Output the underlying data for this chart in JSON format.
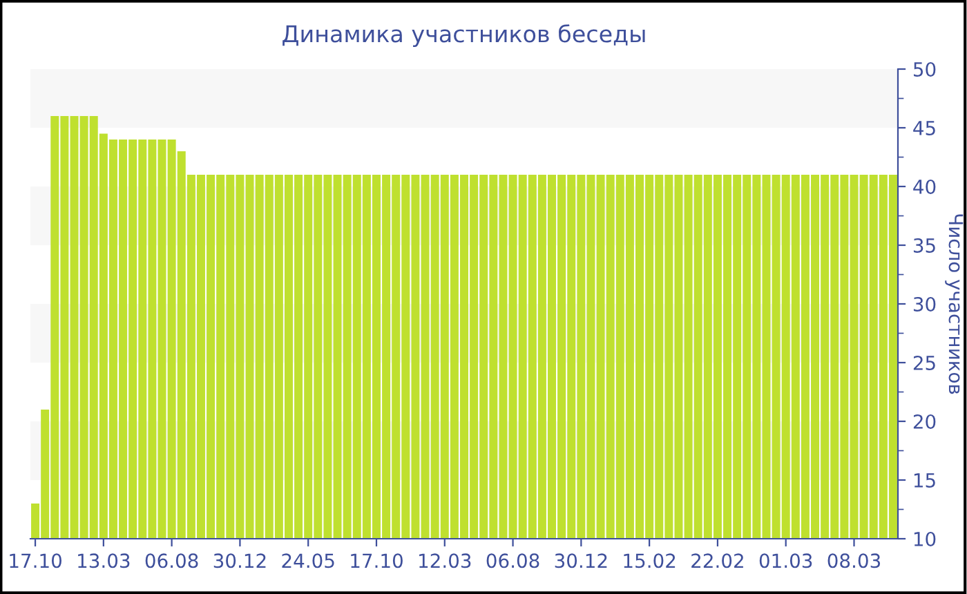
{
  "chart_data": {
    "type": "bar",
    "title": "Динамика участников беседы",
    "ylabel": "Число участников",
    "categories": [
      "17.10",
      null,
      null,
      null,
      null,
      null,
      null,
      "13.03",
      null,
      null,
      null,
      null,
      null,
      null,
      "06.08",
      null,
      null,
      null,
      null,
      null,
      null,
      "30.12",
      null,
      null,
      null,
      null,
      null,
      null,
      "24.05",
      null,
      null,
      null,
      null,
      null,
      null,
      "17.10",
      null,
      null,
      null,
      null,
      null,
      null,
      "12.03",
      null,
      null,
      null,
      null,
      null,
      null,
      "06.08",
      null,
      null,
      null,
      null,
      null,
      null,
      "30.12",
      null,
      null,
      null,
      null,
      null,
      null,
      "15.02",
      null,
      null,
      null,
      null,
      null,
      null,
      "22.02",
      null,
      null,
      null,
      null,
      null,
      null,
      "01.03",
      null,
      null,
      null,
      null,
      null,
      null,
      "08.03",
      null,
      null,
      null,
      null
    ],
    "values": [
      13,
      21,
      46,
      46,
      46,
      46,
      46,
      44.5,
      44,
      44,
      44,
      44,
      44,
      44,
      44,
      43,
      41,
      41,
      41,
      41,
      41,
      41,
      41,
      41,
      41,
      41,
      41,
      41,
      41,
      41,
      41,
      41,
      41,
      41,
      41,
      41,
      41,
      41,
      41,
      41,
      41,
      41,
      41,
      41,
      41,
      41,
      41,
      41,
      41,
      41,
      41,
      41,
      41,
      41,
      41,
      41,
      41,
      41,
      41,
      41,
      41,
      41,
      41,
      41,
      41,
      41,
      41,
      41,
      41,
      41,
      41,
      41,
      41,
      41,
      41,
      41,
      41,
      41,
      41,
      41,
      41,
      41,
      41,
      41,
      41,
      41,
      41,
      41,
      41
    ],
    "color": "#bfe02f",
    "ylim": [
      10,
      50
    ],
    "yticks": [
      10,
      15,
      20,
      25,
      30,
      35,
      40,
      45,
      50
    ],
    "bands": [
      {
        "axis": "y",
        "from": 15,
        "to": 20,
        "color": "#f7f7f7"
      },
      {
        "axis": "y",
        "from": 25,
        "to": 30,
        "color": "#f7f7f7"
      },
      {
        "axis": "y",
        "from": 35,
        "to": 40,
        "color": "#f7f7f7"
      },
      {
        "axis": "y",
        "from": 45,
        "to": 50,
        "color": "#f7f7f7"
      }
    ],
    "grid": false,
    "legend": false
  }
}
